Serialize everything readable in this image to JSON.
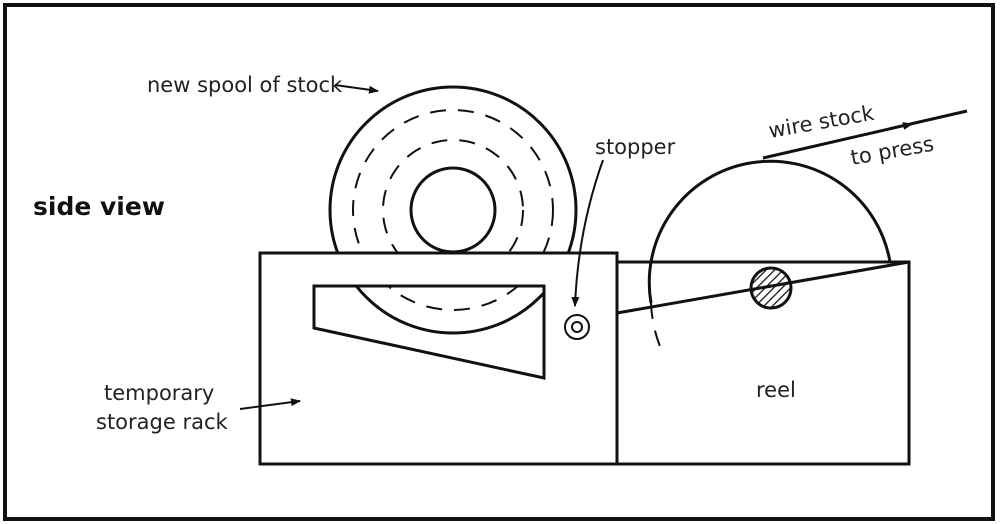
{
  "labels": {
    "view": "side view",
    "new_spool": "new spool of stock",
    "stopper": "stopper",
    "wire_stock_line1": "wire stock",
    "wire_stock_line2": "to press",
    "rack_line1": "temporary",
    "rack_line2": "storage rack",
    "reel": "reel"
  }
}
